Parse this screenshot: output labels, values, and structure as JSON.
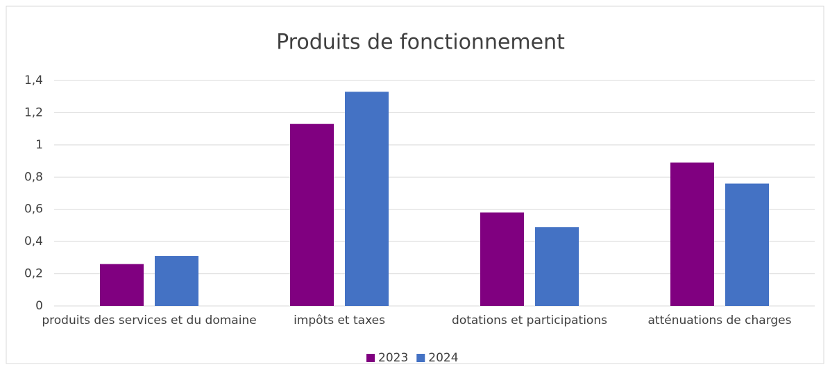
{
  "chart_data": {
    "type": "bar",
    "title": "Produits de fonctionnement",
    "categories": [
      "produits des services et du domaine",
      "impôts et taxes",
      "dotations et participations",
      "atténuations de charges"
    ],
    "series": [
      {
        "name": "2023",
        "color": "#800080",
        "values": [
          0.26,
          1.13,
          0.58,
          0.89
        ]
      },
      {
        "name": "2024",
        "color": "#4472c4",
        "values": [
          0.31,
          1.33,
          0.49,
          0.76
        ]
      }
    ],
    "ylim": [
      0,
      1.4
    ],
    "yticks": [
      0,
      {
        "value": 0.2,
        "label": "0,2"
      },
      {
        "value": 0.4,
        "label": "0,4"
      },
      {
        "value": 0.6,
        "label": "0,6"
      },
      {
        "value": 0.8,
        "label": "0,8"
      },
      1,
      {
        "value": 1.2,
        "label": "1,2"
      },
      {
        "value": 1.4,
        "label": "1,4"
      }
    ],
    "grid": true,
    "legend": "bottom"
  }
}
